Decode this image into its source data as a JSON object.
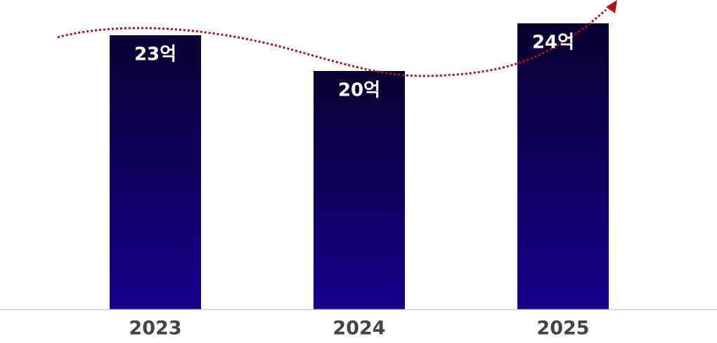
{
  "chart_data": {
    "type": "bar",
    "categories": [
      "2023",
      "2024",
      "2025"
    ],
    "values": [
      23,
      20,
      24
    ],
    "value_labels": [
      "23억",
      "20억",
      "24억"
    ],
    "color": [
      "#0a0030",
      "#15008c"
    ]
  }
}
